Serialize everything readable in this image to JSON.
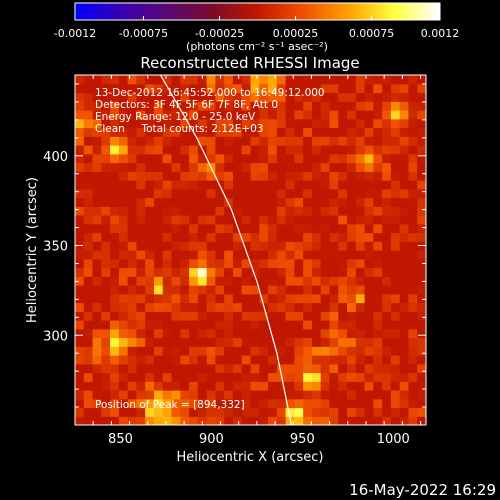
{
  "chart_data": {
    "type": "heatmap",
    "title": "Reconstructed RHESSI Image",
    "xlabel": "Heliocentric X (arcsec)",
    "ylabel": "Heliocentric Y (arcsec)",
    "xlim": [
      825,
      1018
    ],
    "ylim": [
      250,
      445
    ],
    "xticks": [
      850,
      900,
      950,
      1000
    ],
    "yticks": [
      300,
      350,
      400
    ],
    "colorbar": {
      "range": [
        -0.0012,
        0.0012
      ],
      "ticks": [
        "-0.0012",
        "-0.00075",
        "-0.00025",
        "0.00025",
        "0.00075",
        "0.0012"
      ],
      "unit_label": "(photons cm⁻² s⁻¹ asec⁻²)",
      "colors": [
        "#0000ff",
        "#3a00b0",
        "#5a0878",
        "#7a0a2a",
        "#c01800",
        "#f05000",
        "#ffa000",
        "#ffff40",
        "#ffffff"
      ]
    },
    "info_lines": [
      "13-Dec-2012 16:45:52.000 to 16:49:12.000",
      "Detectors: 3F 4F 5F 6F 7F 8F, Att 0",
      "Energy Range: 12.0 - 25.0 keV",
      "Clean     Total counts: 2.12E+03"
    ],
    "peak_label": "Position of Peak = [894,332]",
    "peak": {
      "x": 894,
      "y": 332
    },
    "bright_sources": [
      {
        "x": 894,
        "y": 334,
        "value": 0.0012
      },
      {
        "x": 946,
        "y": 256,
        "value": 0.0011
      },
      {
        "x": 955,
        "y": 276,
        "value": 0.001
      },
      {
        "x": 848,
        "y": 404,
        "value": 0.0009
      },
      {
        "x": 1002,
        "y": 424,
        "value": 0.0008
      },
      {
        "x": 986,
        "y": 398,
        "value": 0.0007
      }
    ],
    "limb_curve": [
      {
        "x": 872,
        "y": 445
      },
      {
        "x": 892,
        "y": 410
      },
      {
        "x": 911,
        "y": 370
      },
      {
        "x": 925,
        "y": 330
      },
      {
        "x": 936,
        "y": 290
      },
      {
        "x": 944,
        "y": 250
      }
    ]
  },
  "footer": {
    "timestamp": "16-May-2022 16:29"
  }
}
